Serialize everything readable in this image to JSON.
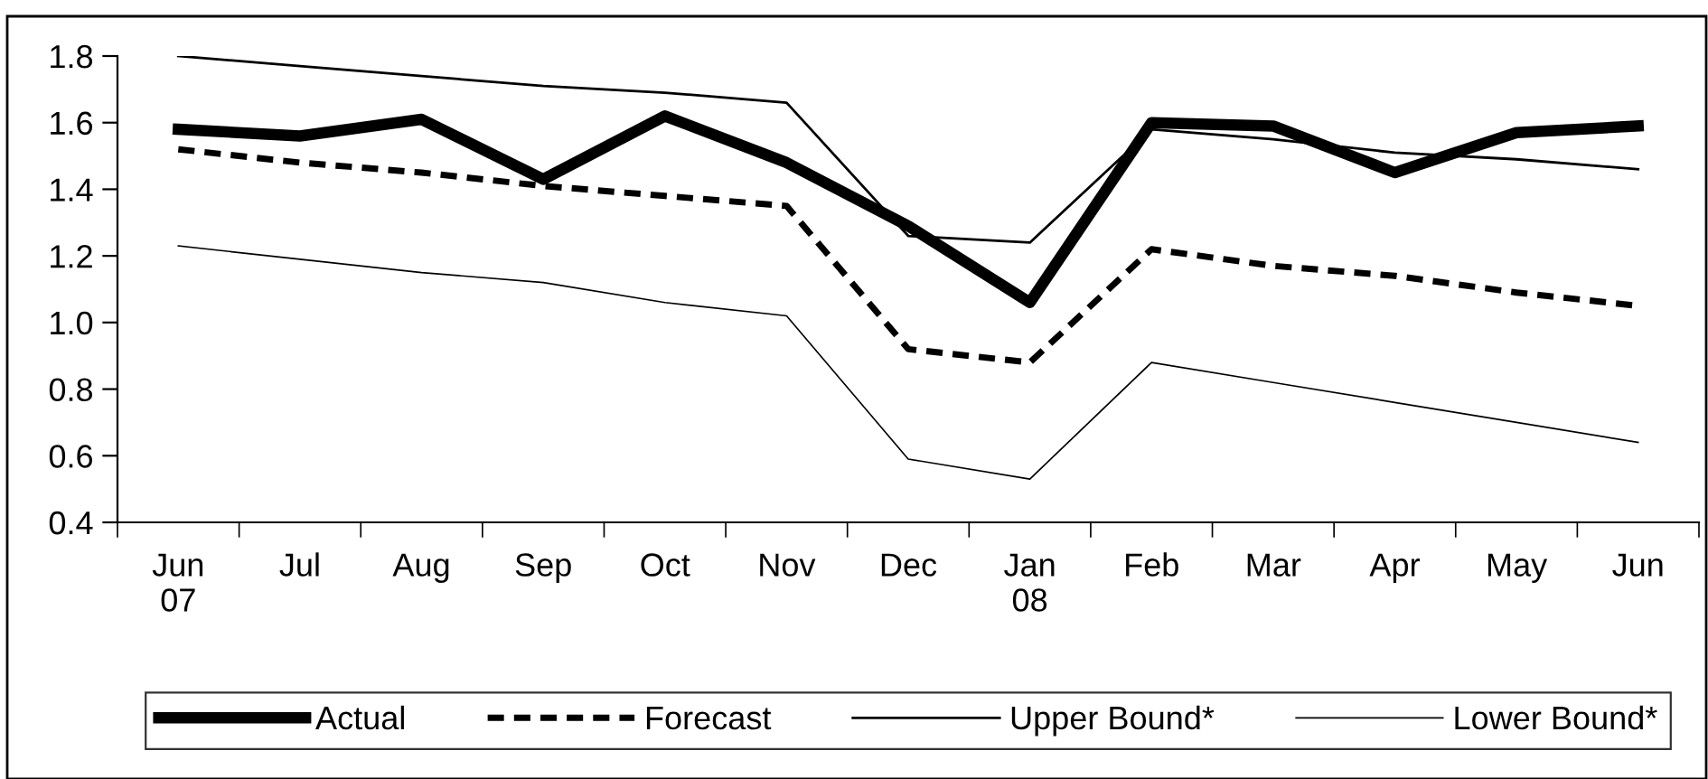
{
  "chart_data": {
    "type": "line",
    "categories": [
      "Jun\n07",
      "Jul",
      "Aug",
      "Sep",
      "Oct",
      "Nov",
      "Dec",
      "Jan\n08",
      "Feb",
      "Mar",
      "Apr",
      "May",
      "Jun"
    ],
    "series": [
      {
        "name": "Actual",
        "color": "#000000",
        "line_style": "solid",
        "values": [
          1.58,
          1.56,
          1.61,
          1.43,
          1.62,
          1.48,
          1.29,
          1.06,
          1.6,
          1.59,
          1.45,
          1.57,
          1.59
        ]
      },
      {
        "name": "Forecast",
        "color": "#000000",
        "line_style": "dashed",
        "values": [
          1.52,
          1.48,
          1.45,
          1.41,
          1.38,
          1.35,
          0.92,
          0.88,
          1.22,
          1.17,
          1.14,
          1.09,
          1.05
        ]
      },
      {
        "name": "Upper Bound*",
        "color": "#000000",
        "line_style": "solid",
        "values": [
          1.8,
          1.77,
          1.74,
          1.71,
          1.69,
          1.66,
          1.26,
          1.24,
          1.58,
          1.55,
          1.51,
          1.49,
          1.46
        ]
      },
      {
        "name": "Lower Bound*",
        "color": "#000000",
        "line_style": "solid",
        "values": [
          1.23,
          1.19,
          1.15,
          1.12,
          1.06,
          1.02,
          0.59,
          0.53,
          0.88,
          0.82,
          0.76,
          0.7,
          0.64
        ]
      }
    ],
    "ylim": [
      0.4,
      1.8
    ],
    "yticks": [
      0.4,
      0.6,
      0.8,
      {
        "value": 1.0,
        "label": "1.0"
      },
      1.2,
      1.4,
      1.6,
      1.8
    ],
    "grid": false,
    "legend": "bottom",
    "marker": "none"
  }
}
